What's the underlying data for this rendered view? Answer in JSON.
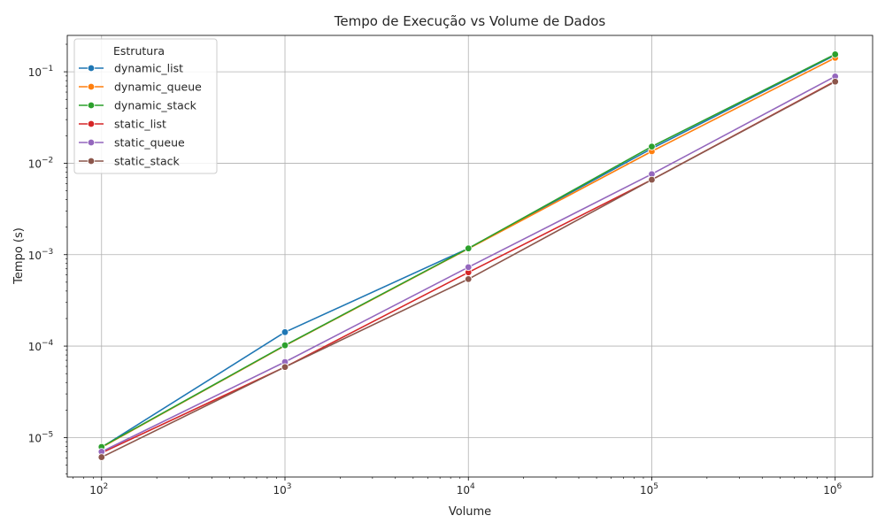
{
  "chart_data": {
    "type": "line",
    "title": "Tempo de Execução vs Volume de Dados",
    "xlabel": "Volume",
    "ylabel": "Tempo (s)",
    "xscale": "log",
    "yscale": "log",
    "xlim": [
      65,
      1600000
    ],
    "ylim": [
      3.7e-06,
      0.25
    ],
    "x": [
      100,
      1000,
      10000,
      100000,
      1000000
    ],
    "xticks": [
      {
        "base": "10",
        "exp": "2",
        "value": 100
      },
      {
        "base": "10",
        "exp": "3",
        "value": 1000
      },
      {
        "base": "10",
        "exp": "4",
        "value": 10000
      },
      {
        "base": "10",
        "exp": "5",
        "value": 100000
      },
      {
        "base": "10",
        "exp": "6",
        "value": 1000000
      }
    ],
    "yticks": [
      {
        "base": "10",
        "exp": "−5",
        "value": 1e-05
      },
      {
        "base": "10",
        "exp": "−4",
        "value": 0.0001
      },
      {
        "base": "10",
        "exp": "−3",
        "value": 0.001
      },
      {
        "base": "10",
        "exp": "−2",
        "value": 0.01
      },
      {
        "base": "10",
        "exp": "−1",
        "value": 0.1
      }
    ],
    "grid": true,
    "legend": {
      "title": "Estrutura",
      "placement": "upper-left"
    },
    "series": [
      {
        "name": "dynamic_list",
        "color": "#1f77b4",
        "values": [
          7.8e-06,
          0.000142,
          0.00117,
          0.0145,
          0.152
        ]
      },
      {
        "name": "dynamic_queue",
        "color": "#ff7f0e",
        "values": [
          7.8e-06,
          0.000101,
          0.00116,
          0.0135,
          0.142
        ]
      },
      {
        "name": "dynamic_stack",
        "color": "#2ca02c",
        "values": [
          7.9e-06,
          0.000102,
          0.00117,
          0.0152,
          0.155
        ]
      },
      {
        "name": "static_list",
        "color": "#d62728",
        "values": [
          6.8e-06,
          5.9e-05,
          0.00064,
          0.0066,
          0.079
        ]
      },
      {
        "name": "static_queue",
        "color": "#9467bd",
        "values": [
          7e-06,
          6.7e-05,
          0.00073,
          0.0076,
          0.089
        ]
      },
      {
        "name": "static_stack",
        "color": "#8c564b",
        "values": [
          6.1e-06,
          5.9e-05,
          0.00054,
          0.0066,
          0.078
        ]
      }
    ]
  }
}
